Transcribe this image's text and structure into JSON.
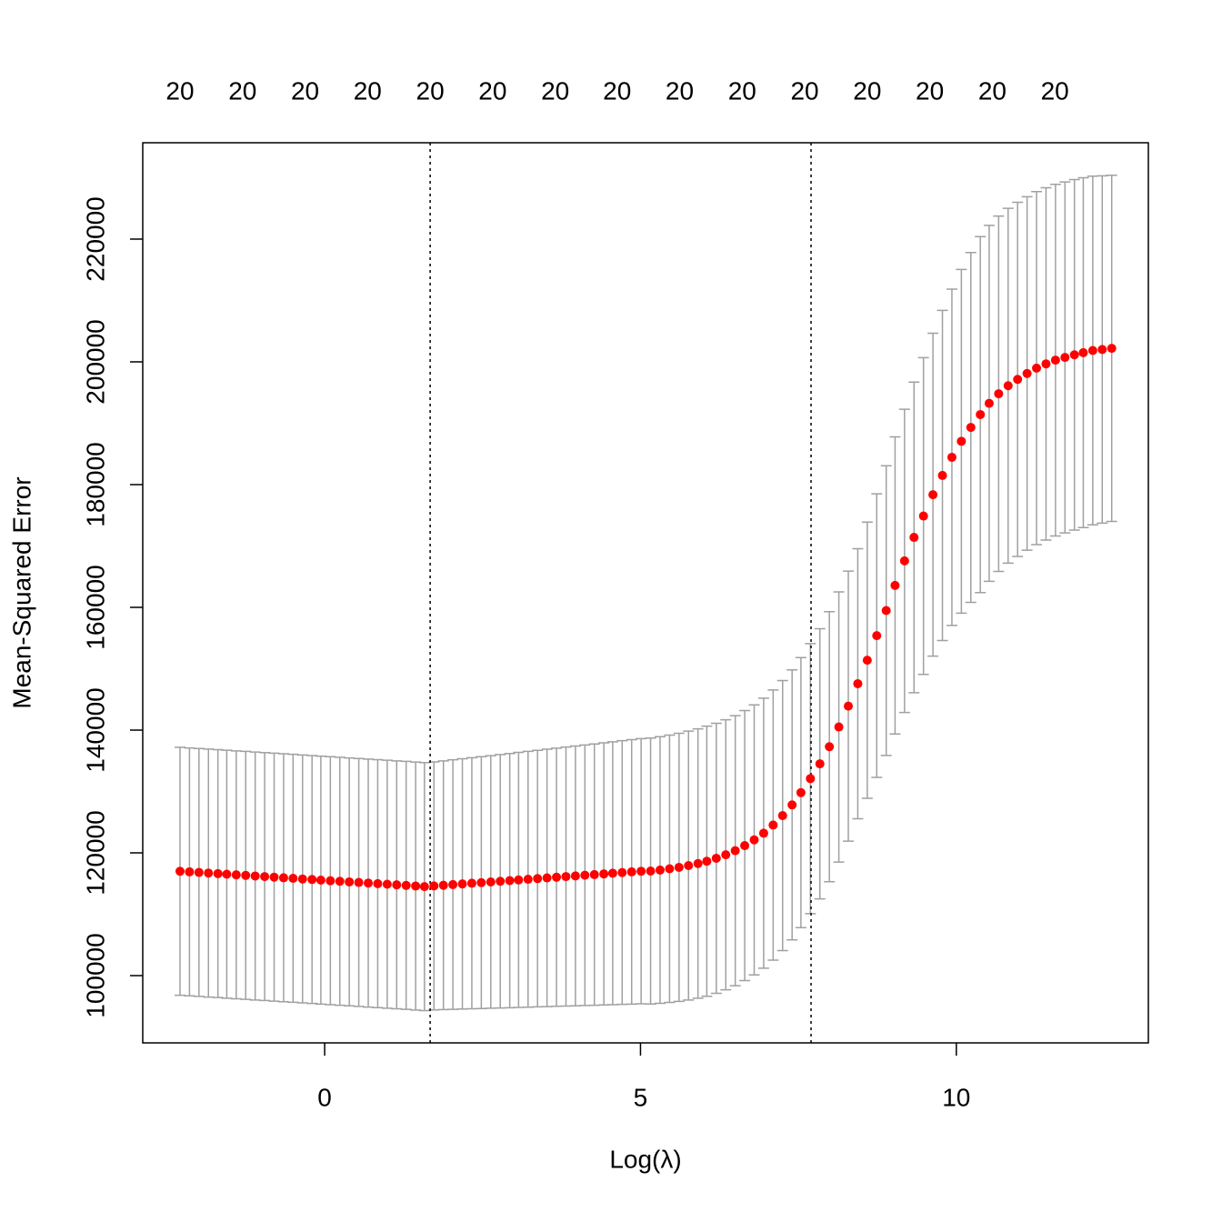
{
  "chart_data": {
    "type": "errorbar",
    "xlabel": "Log(λ)",
    "ylabel": "Mean-Squared Error",
    "x": [
      -2.29,
      -2.14,
      -1.99,
      -1.84,
      -1.69,
      -1.55,
      -1.4,
      -1.25,
      -1.1,
      -0.95,
      -0.8,
      -0.65,
      -0.5,
      -0.35,
      -0.2,
      -0.06,
      0.09,
      0.24,
      0.39,
      0.54,
      0.69,
      0.84,
      0.99,
      1.14,
      1.29,
      1.44,
      1.58,
      1.73,
      1.88,
      2.03,
      2.18,
      2.33,
      2.48,
      2.63,
      2.78,
      2.93,
      3.07,
      3.22,
      3.37,
      3.52,
      3.67,
      3.82,
      3.97,
      4.12,
      4.27,
      4.42,
      4.56,
      4.71,
      4.86,
      5.01,
      5.16,
      5.31,
      5.46,
      5.61,
      5.76,
      5.91,
      6.05,
      6.2,
      6.35,
      6.5,
      6.65,
      6.8,
      6.95,
      7.1,
      7.25,
      7.4,
      7.54,
      7.69,
      7.84,
      7.99,
      8.14,
      8.29,
      8.44,
      8.59,
      8.74,
      8.89,
      9.03,
      9.18,
      9.33,
      9.48,
      9.63,
      9.78,
      9.93,
      10.08,
      10.23,
      10.38,
      10.52,
      10.67,
      10.82,
      10.97,
      11.12,
      11.27,
      11.42,
      11.57,
      11.72,
      11.87,
      12.01,
      12.16,
      12.31,
      12.46
    ],
    "values": [
      117000,
      116900,
      116810,
      116710,
      116620,
      116520,
      116420,
      116330,
      116230,
      116140,
      116040,
      115940,
      115850,
      115750,
      115660,
      115560,
      115460,
      115370,
      115270,
      115180,
      115080,
      114980,
      114890,
      114790,
      114700,
      114600,
      114500,
      114610,
      114720,
      114830,
      114940,
      115050,
      115150,
      115260,
      115370,
      115480,
      115590,
      115700,
      115810,
      115920,
      116030,
      116140,
      116240,
      116350,
      116460,
      116570,
      116680,
      116790,
      116900,
      117010,
      117040,
      117200,
      117410,
      117640,
      117930,
      118260,
      118640,
      119120,
      119690,
      120360,
      121180,
      122120,
      123200,
      124530,
      126070,
      127810,
      129810,
      132100,
      134510,
      137300,
      140510,
      143910,
      147560,
      151390,
      155390,
      159480,
      163570,
      167570,
      171400,
      174880,
      178360,
      181490,
      184450,
      187060,
      189320,
      191410,
      193240,
      194800,
      196110,
      197150,
      198110,
      198980,
      199670,
      200280,
      200720,
      201150,
      201500,
      201850,
      202020,
      202200
    ],
    "errors": [
      20200,
      20200,
      20200,
      20200,
      20200,
      20200,
      20200,
      20200,
      20200,
      20200,
      20200,
      20200,
      20200,
      20200,
      20200,
      20200,
      20200,
      20200,
      20200,
      20200,
      20200,
      20200,
      20200,
      20200,
      20200,
      20200,
      20200,
      20200,
      20260,
      20330,
      20390,
      20460,
      20520,
      20580,
      20650,
      20710,
      20780,
      20840,
      20900,
      20970,
      21030,
      21100,
      21160,
      21220,
      21290,
      21350,
      21420,
      21480,
      21540,
      21600,
      21660,
      21720,
      21780,
      21840,
      21900,
      21950,
      22000,
      22000,
      22000,
      22000,
      22000,
      22000,
      22000,
      22000,
      22000,
      22000,
      22000,
      22000,
      22000,
      22000,
      22000,
      22000,
      22000,
      22500,
      23100,
      23600,
      24200,
      24700,
      25300,
      25800,
      26300,
      26900,
      27400,
      28000,
      28500,
      29000,
      29000,
      28950,
      28900,
      28850,
      28800,
      28750,
      28700,
      28650,
      28600,
      28550,
      28500,
      28400,
      28300,
      28200
    ],
    "color": "#ff0000",
    "error_color": "#a0a0a0",
    "xlim": [
      -2.88,
      13.04
    ],
    "ylim": [
      89040,
      235700
    ],
    "xticks": [
      0,
      5,
      10
    ],
    "yticks": [
      100000,
      120000,
      140000,
      160000,
      180000,
      200000,
      220000
    ],
    "vlines": [
      1.67,
      7.7
    ],
    "top_ticks": [
      {
        "value": -2.29,
        "label": "20"
      },
      {
        "value": -1.3,
        "label": "20"
      },
      {
        "value": -0.31,
        "label": "20"
      },
      {
        "value": 0.68,
        "label": "20"
      },
      {
        "value": 1.67,
        "label": "20"
      },
      {
        "value": 2.66,
        "label": "20"
      },
      {
        "value": 3.65,
        "label": "20"
      },
      {
        "value": 4.63,
        "label": "20"
      },
      {
        "value": 5.62,
        "label": "20"
      },
      {
        "value": 6.61,
        "label": "20"
      },
      {
        "value": 7.6,
        "label": "20"
      },
      {
        "value": 8.59,
        "label": "20"
      },
      {
        "value": 9.58,
        "label": "20"
      },
      {
        "value": 10.57,
        "label": "20"
      },
      {
        "value": 11.56,
        "label": "20"
      }
    ]
  }
}
